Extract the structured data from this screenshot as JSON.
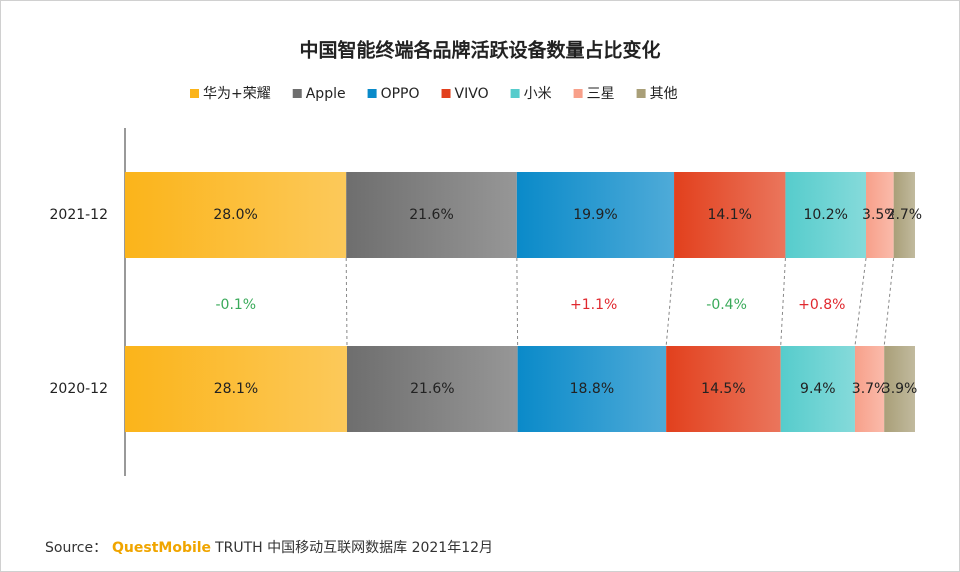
{
  "chart_data": {
    "type": "stacked-bar-horizontal",
    "title": "中国智能终端各品牌活跃设备数量占比变化",
    "categories": [
      "2021-12",
      "2020-12"
    ],
    "xlim": [
      0,
      100
    ],
    "series": [
      {
        "name": "华为+荣耀",
        "color": "#fbb41a",
        "values": [
          28.0,
          28.1
        ],
        "value_labels": [
          "28.0%",
          "28.1%"
        ]
      },
      {
        "name": "Apple",
        "color": "#6e6e6e",
        "values": [
          21.6,
          21.6
        ],
        "value_labels": [
          "21.6%",
          "21.6%"
        ]
      },
      {
        "name": "OPPO",
        "color": "#0a8ac9",
        "values": [
          19.9,
          18.8
        ],
        "value_labels": [
          "19.9%",
          "18.8%"
        ]
      },
      {
        "name": "VIVO",
        "color": "#e2401d",
        "values": [
          14.1,
          14.5
        ],
        "value_labels": [
          "14.1%",
          "14.5%"
        ]
      },
      {
        "name": "小米",
        "color": "#56cccc",
        "values": [
          10.2,
          9.4
        ],
        "value_labels": [
          "10.2%",
          "9.4%"
        ]
      },
      {
        "name": "三星",
        "color": "#f8a08a",
        "values": [
          3.5,
          3.7
        ],
        "value_labels": [
          "3.5%",
          "3.7%"
        ]
      },
      {
        "name": "其他",
        "color": "#a99f78",
        "values": [
          2.7,
          3.9
        ],
        "value_labels": [
          "2.7%",
          "3.9%"
        ]
      }
    ],
    "changes": [
      "-0.1%",
      null,
      "+1.1%",
      "-0.4%",
      "+0.8%",
      null,
      null
    ],
    "source": {
      "prefix": "Source：",
      "brand": "QuestMobile",
      "text": "TRUTH 中国移动互联网数据库 2021年12月"
    }
  }
}
